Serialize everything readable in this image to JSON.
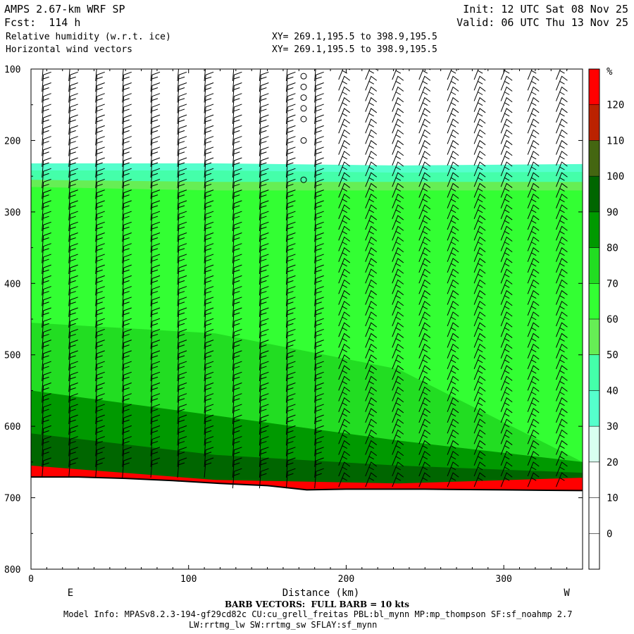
{
  "header": {
    "model": "AMPS 2.67-km WRF SP",
    "forecast": "Fcst:  114 h",
    "field1": "Relative humidity (w.r.t. ice)",
    "field2": "Horizontal wind vectors",
    "xy1": "XY= 269.1,195.5 to 398.9,195.5",
    "xy2": "XY= 269.1,195.5 to 398.9,195.5",
    "init": "Init: 12 UTC Sat 08 Nov 25",
    "valid": "Valid: 06 UTC Thu 13 Nov 25"
  },
  "footer": {
    "barb_note": "BARB VECTORS:  FULL BARB = 10 kts",
    "model_info": "Model Info: MPASv8.2.3-194-gf29cd82c CU:cu_grell_freitas PBL:bl_mynn MP:mp_thompson SF:sf_noahmp 2.7",
    "model_info2": "LW:rrtmg_lw SW:rrtmg_sw SFLAY:sf_mynn"
  },
  "chart_data": {
    "type": "heatmap",
    "xlabel": "Distance (km)",
    "ylabel": "",
    "xlim": [
      0,
      350
    ],
    "ylim": [
      800,
      100
    ],
    "x_ticks": [
      0,
      100,
      200,
      300
    ],
    "y_ticks": [
      100,
      200,
      300,
      400,
      500,
      600,
      700,
      800
    ],
    "left_end_label": "E",
    "right_end_label": "W",
    "colorbar": {
      "unit": "%",
      "levels": [
        0,
        10,
        20,
        30,
        40,
        50,
        60,
        70,
        80,
        90,
        100,
        110,
        120
      ],
      "colors": [
        "#ffffff",
        "#ffffff",
        "#ffffff",
        "#d8fff0",
        "#55ffcc",
        "#44ffaa",
        "#66ee55",
        "#33ff33",
        "#22dd22",
        "#009900",
        "#006600",
        "#446611",
        "#bb2200",
        "#ff0000"
      ]
    },
    "terrain_surface_hPa": [
      [
        0,
        671
      ],
      [
        30,
        671
      ],
      [
        60,
        673
      ],
      [
        90,
        676
      ],
      [
        120,
        680
      ],
      [
        150,
        683
      ],
      [
        175,
        689
      ],
      [
        200,
        688
      ],
      [
        250,
        688
      ],
      [
        300,
        689
      ],
      [
        350,
        690
      ]
    ],
    "rh_layers": [
      {
        "rh": 30,
        "top_hPa": [
          232,
          232,
          235,
          233
        ]
      },
      {
        "rh": 40,
        "top_hPa": [
          242,
          242,
          245,
          244
        ]
      },
      {
        "rh": 50,
        "top_hPa": [
          255,
          258,
          258,
          258
        ]
      },
      {
        "rh": 60,
        "top_hPa": [
          265,
          270,
          270,
          270
        ]
      },
      {
        "rh": 70,
        "top_hPa": [
          455,
          470,
          520,
          650
        ]
      },
      {
        "rh": 80,
        "top_hPa": [
          550,
          585,
          620,
          650
        ]
      },
      {
        "rh": 90,
        "top_hPa": [
          610,
          640,
          655,
          665
        ]
      },
      {
        "rh": 120,
        "top_hPa": [
          655,
          675,
          680,
          672
        ]
      }
    ],
    "rh_layer_x_km": [
      0,
      117,
      233,
      350
    ],
    "barb_columns_km": [
      7,
      24,
      41,
      58,
      76,
      93,
      110,
      128,
      145,
      162,
      180,
      197,
      214,
      231,
      248,
      266,
      283,
      300,
      317,
      335
    ],
    "calm_column_km": 173,
    "calm_levels_hPa": [
      110,
      125,
      140,
      155,
      170,
      200,
      255
    ]
  }
}
